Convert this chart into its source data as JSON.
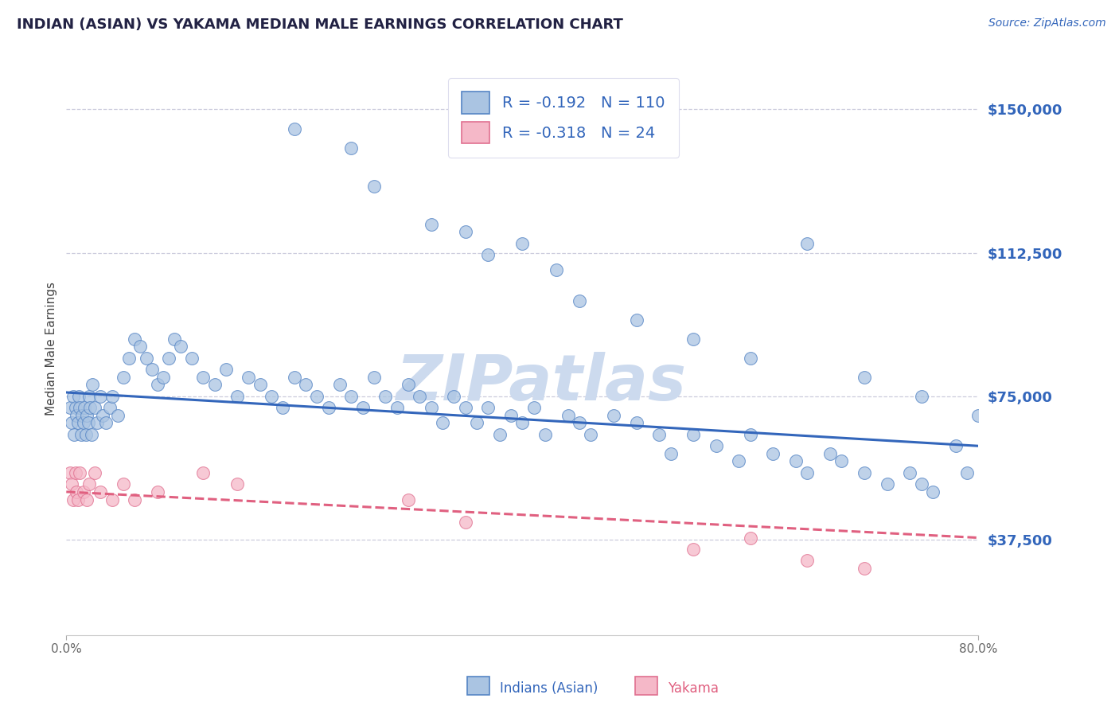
{
  "title": "INDIAN (ASIAN) VS YAKAMA MEDIAN MALE EARNINGS CORRELATION CHART",
  "source": "Source: ZipAtlas.com",
  "ylabel": "Median Male Earnings",
  "xmin": 0.0,
  "xmax": 80.0,
  "ymin": 12500,
  "ymax": 162500,
  "blue_R": -0.192,
  "blue_N": 110,
  "pink_R": -0.318,
  "pink_N": 24,
  "blue_color": "#aac4e2",
  "blue_edge_color": "#5585c5",
  "blue_line_color": "#3366bb",
  "pink_color": "#f5b8c8",
  "pink_edge_color": "#e07090",
  "pink_line_color": "#e06080",
  "legend_label_color": "#3366bb",
  "title_color": "#222244",
  "source_color": "#3366bb",
  "ytick_color": "#3366bb",
  "watermark_color": "#ccdaee",
  "grid_color": "#ccccdd",
  "background_color": "#ffffff",
  "blue_trend_x": [
    0.0,
    80.0
  ],
  "blue_trend_y": [
    76000,
    62000
  ],
  "pink_trend_x": [
    0.0,
    80.0
  ],
  "pink_trend_y": [
    50000,
    38000
  ],
  "blue_scatter_x": [
    0.3,
    0.5,
    0.6,
    0.7,
    0.8,
    0.9,
    1.0,
    1.1,
    1.2,
    1.3,
    1.4,
    1.5,
    1.6,
    1.7,
    1.8,
    1.9,
    2.0,
    2.1,
    2.2,
    2.3,
    2.5,
    2.7,
    3.0,
    3.2,
    3.5,
    3.8,
    4.0,
    4.5,
    5.0,
    5.5,
    6.0,
    6.5,
    7.0,
    7.5,
    8.0,
    8.5,
    9.0,
    9.5,
    10.0,
    11.0,
    12.0,
    13.0,
    14.0,
    15.0,
    16.0,
    17.0,
    18.0,
    19.0,
    20.0,
    21.0,
    22.0,
    23.0,
    24.0,
    25.0,
    26.0,
    27.0,
    28.0,
    29.0,
    30.0,
    31.0,
    32.0,
    33.0,
    34.0,
    35.0,
    36.0,
    37.0,
    38.0,
    39.0,
    40.0,
    41.0,
    42.0,
    44.0,
    45.0,
    46.0,
    48.0,
    50.0,
    52.0,
    53.0,
    55.0,
    57.0,
    59.0,
    60.0,
    62.0,
    64.0,
    65.0,
    67.0,
    68.0,
    70.0,
    72.0,
    74.0,
    75.0,
    76.0,
    27.0,
    32.0,
    20.0,
    25.0,
    35.0,
    40.0,
    37.0,
    43.0,
    45.0,
    50.0,
    55.0,
    60.0,
    65.0,
    70.0,
    75.0,
    80.0,
    78.0,
    79.0
  ],
  "blue_scatter_y": [
    72000,
    68000,
    75000,
    65000,
    72000,
    70000,
    68000,
    75000,
    72000,
    65000,
    70000,
    68000,
    72000,
    65000,
    70000,
    68000,
    75000,
    72000,
    65000,
    78000,
    72000,
    68000,
    75000,
    70000,
    68000,
    72000,
    75000,
    70000,
    80000,
    85000,
    90000,
    88000,
    85000,
    82000,
    78000,
    80000,
    85000,
    90000,
    88000,
    85000,
    80000,
    78000,
    82000,
    75000,
    80000,
    78000,
    75000,
    72000,
    80000,
    78000,
    75000,
    72000,
    78000,
    75000,
    72000,
    80000,
    75000,
    72000,
    78000,
    75000,
    72000,
    68000,
    75000,
    72000,
    68000,
    72000,
    65000,
    70000,
    68000,
    72000,
    65000,
    70000,
    68000,
    65000,
    70000,
    68000,
    65000,
    60000,
    65000,
    62000,
    58000,
    65000,
    60000,
    58000,
    55000,
    60000,
    58000,
    55000,
    52000,
    55000,
    52000,
    50000,
    130000,
    120000,
    145000,
    140000,
    118000,
    115000,
    112000,
    108000,
    100000,
    95000,
    90000,
    85000,
    115000,
    80000,
    75000,
    70000,
    62000,
    55000
  ],
  "pink_scatter_x": [
    0.3,
    0.5,
    0.6,
    0.8,
    0.9,
    1.0,
    1.2,
    1.5,
    1.8,
    2.0,
    2.5,
    3.0,
    4.0,
    5.0,
    6.0,
    8.0,
    12.0,
    15.0,
    30.0,
    35.0,
    55.0,
    60.0,
    65.0,
    70.0
  ],
  "pink_scatter_y": [
    55000,
    52000,
    48000,
    55000,
    50000,
    48000,
    55000,
    50000,
    48000,
    52000,
    55000,
    50000,
    48000,
    52000,
    48000,
    50000,
    55000,
    52000,
    48000,
    42000,
    35000,
    38000,
    32000,
    30000
  ]
}
